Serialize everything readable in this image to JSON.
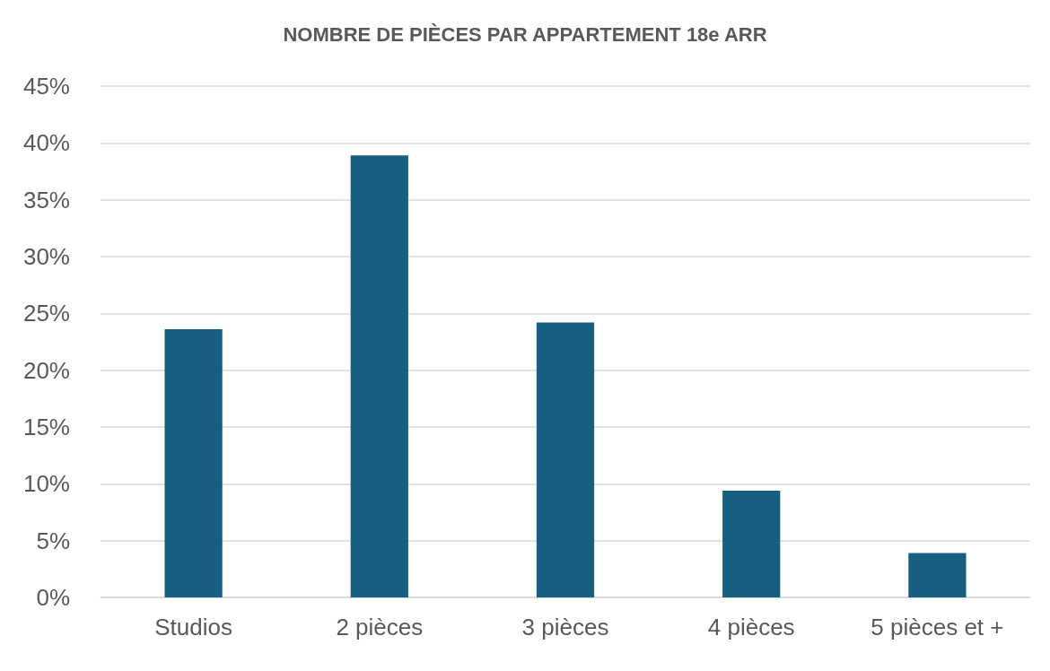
{
  "chart_data": {
    "type": "bar",
    "title": "NOMBRE DE PIÈCES PAR APPARTEMENT 18e ARR",
    "categories": [
      "Studios",
      "2 pièces",
      "3 pièces",
      "4 pièces",
      "5 pièces et +"
    ],
    "values": [
      23.6,
      38.9,
      24.2,
      9.4,
      3.9
    ],
    "color": "#175f80",
    "ylim": [
      0,
      45
    ],
    "yticks": [
      {
        "value": 0,
        "label": "0%"
      },
      {
        "value": 5,
        "label": "5%"
      },
      {
        "value": 10,
        "label": "10%"
      },
      {
        "value": 15,
        "label": "15%"
      },
      {
        "value": 20,
        "label": "20%"
      },
      {
        "value": 25,
        "label": "25%"
      },
      {
        "value": 30,
        "label": "30%"
      },
      {
        "value": 35,
        "label": "35%"
      },
      {
        "value": 40,
        "label": "40%"
      },
      {
        "value": 45,
        "label": "45%"
      }
    ],
    "grid": true
  }
}
